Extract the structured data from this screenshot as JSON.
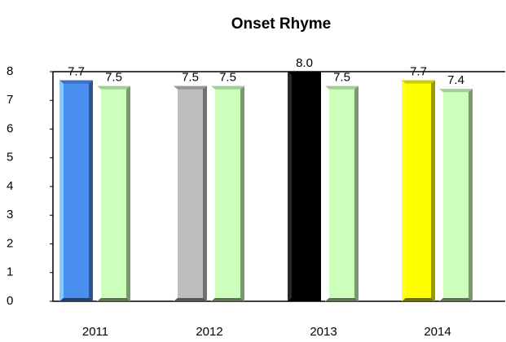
{
  "chart_data": {
    "type": "bar",
    "title": "Onset Rhyme",
    "categories": [
      "2011",
      "2012",
      "2013",
      "2014"
    ],
    "series": [
      {
        "colors": [
          "#4a8ef0",
          "#bdbdbd",
          "#000000",
          "#ffff00"
        ],
        "values": [
          7.7,
          7.5,
          8.0,
          7.7
        ],
        "value_labels": [
          "7.7",
          "7.5",
          "8.0",
          "7.7"
        ]
      },
      {
        "color": "#ccffbb",
        "values": [
          7.5,
          7.5,
          7.5,
          7.4
        ],
        "value_labels": [
          "7.5",
          "7.5",
          "7.5",
          "7.4"
        ]
      }
    ],
    "ylim": [
      0,
      8
    ],
    "yticks": [
      0,
      1,
      2,
      3,
      4,
      5,
      6,
      7,
      8
    ]
  }
}
